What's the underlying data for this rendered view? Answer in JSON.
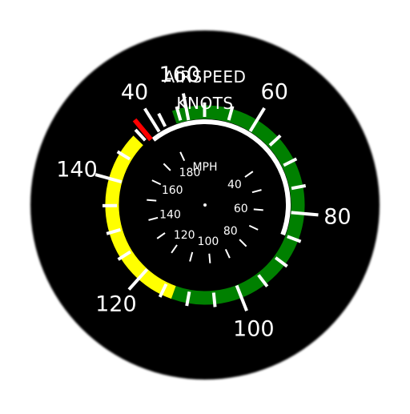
{
  "instrument": {
    "title_line1": "AIRSPEED",
    "title_line2": "KNOTS",
    "inner_unit": "MPH",
    "bezel_color": "#000000",
    "marking_color": "#ffffff"
  },
  "knots_scale": {
    "labels": [
      {
        "value": 40,
        "text": "40"
      },
      {
        "value": 60,
        "text": "60"
      },
      {
        "value": 80,
        "text": "80"
      },
      {
        "value": 100,
        "text": "100"
      },
      {
        "value": 120,
        "text": "120"
      },
      {
        "value": 140,
        "text": "140"
      },
      {
        "value": 160,
        "text": "160"
      }
    ],
    "major_ticks": [
      40,
      60,
      80,
      100,
      120,
      140,
      160
    ],
    "minor_ticks": [
      45,
      50,
      55,
      65,
      70,
      75,
      85,
      90,
      95,
      105,
      110,
      115,
      125,
      130,
      135,
      145,
      150,
      155
    ]
  },
  "mph_scale": {
    "labels": [
      {
        "value": 40,
        "text": "40"
      },
      {
        "value": 60,
        "text": "60"
      },
      {
        "value": 80,
        "text": "80"
      },
      {
        "value": 100,
        "text": "100"
      },
      {
        "value": 120,
        "text": "120"
      },
      {
        "value": 140,
        "text": "140"
      },
      {
        "value": 160,
        "text": "160"
      },
      {
        "value": 180,
        "text": "180"
      }
    ],
    "ticks": [
      40,
      50,
      60,
      70,
      80,
      90,
      100,
      110,
      120,
      130,
      140,
      150,
      160,
      170,
      180
    ]
  },
  "arcs": {
    "white": {
      "from_knots": 38,
      "to_knots": 85,
      "color": "#ffffff"
    },
    "green": {
      "from_knots": 44,
      "to_knots": 113,
      "color": "#008000"
    },
    "yellow": {
      "from_knots": 113,
      "to_knots": 149,
      "color": "#ffff00"
    },
    "redline": {
      "knots": 151,
      "color": "#ff0000"
    }
  }
}
